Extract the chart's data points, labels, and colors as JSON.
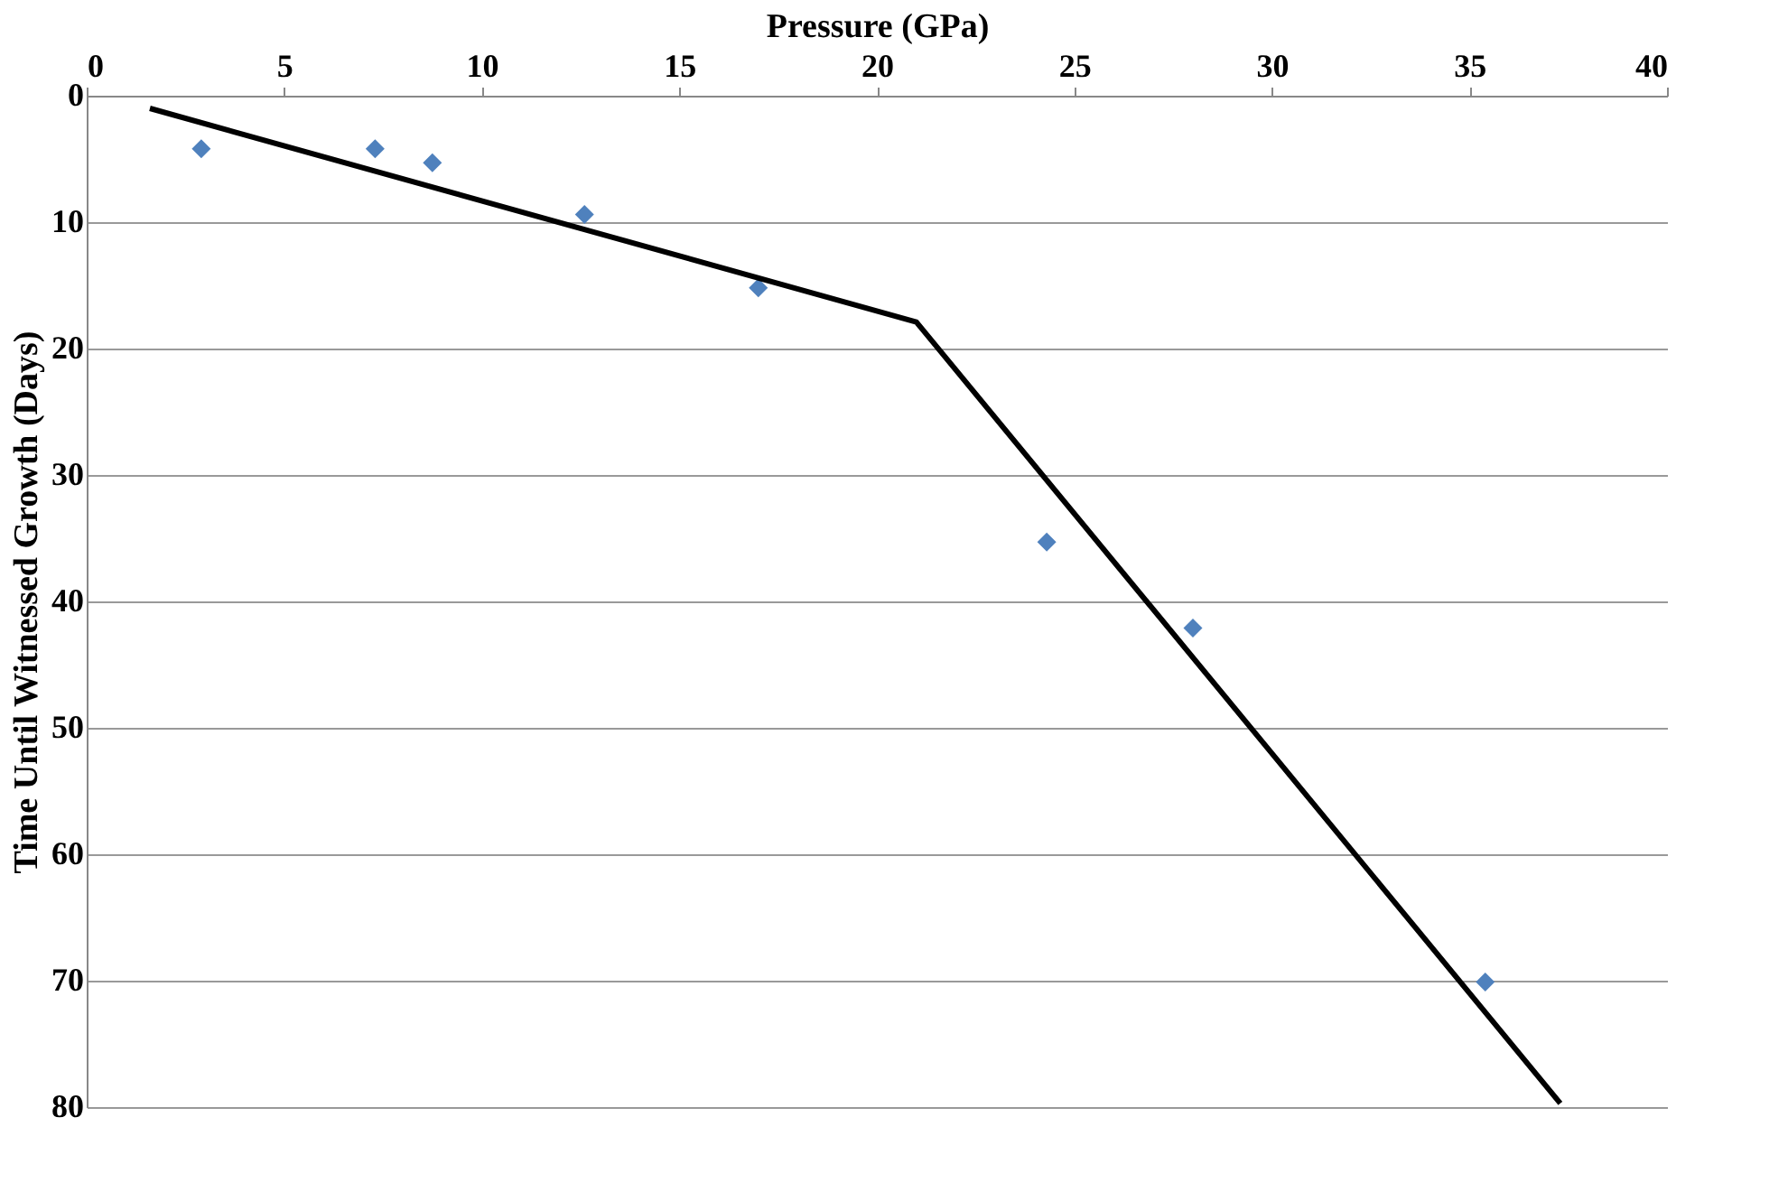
{
  "chart_data": {
    "type": "scatter",
    "xlabel": "Pressure (GPa)",
    "ylabel": "Time Until Witnessed Growth (Days)",
    "xlim": [
      0,
      40
    ],
    "xticks": [
      0,
      5,
      10,
      15,
      20,
      25,
      30,
      35,
      40
    ],
    "ylim": [
      80,
      0
    ],
    "yticks": [
      0,
      10,
      20,
      30,
      40,
      50,
      60,
      70,
      80
    ],
    "grid": "y",
    "series": [
      {
        "marker": "diamond",
        "color": "#4f81bd",
        "x": [
          2.9,
          7.3,
          8.75,
          12.6,
          17.0,
          24.3,
          28.0,
          35.4
        ],
        "values": [
          4.2,
          4.2,
          5.3,
          9.4,
          15.2,
          35.3,
          42.1,
          70.1
        ]
      },
      {
        "type": "line",
        "marker": "none",
        "line_style": "solid",
        "color": "#000000",
        "x": [
          1.6,
          21.0,
          37.3
        ],
        "values": [
          1.0,
          17.9,
          79.7
        ]
      }
    ]
  }
}
